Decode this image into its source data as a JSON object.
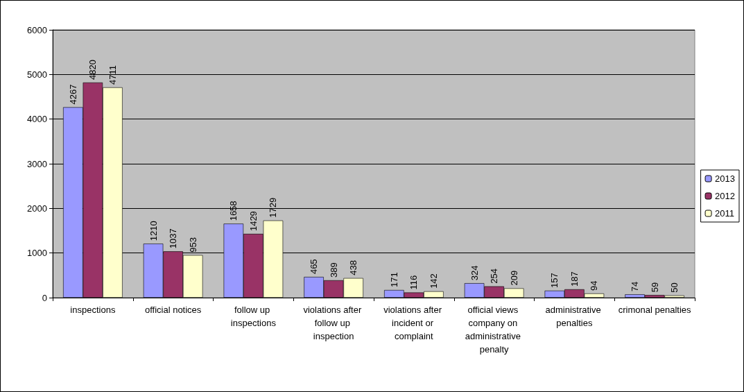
{
  "chart_data": {
    "type": "bar",
    "categories": [
      "inspections",
      "official notices",
      "follow up inspections",
      "violations after follow up inspection",
      "violations after incident or complaint",
      "official views company on administrative penalty",
      "administrative penalties",
      "crimonal penalties"
    ],
    "series": [
      {
        "name": "2013",
        "color": "#9999ff",
        "values": [
          4267,
          1210,
          1658,
          465,
          171,
          324,
          157,
          74
        ]
      },
      {
        "name": "2012",
        "color": "#993366",
        "values": [
          4820,
          1037,
          1429,
          389,
          116,
          254,
          187,
          59
        ]
      },
      {
        "name": "2011",
        "color": "#ffffcc",
        "values": [
          4711,
          953,
          1729,
          438,
          142,
          209,
          94,
          50
        ]
      }
    ],
    "ylim": [
      0,
      6000
    ],
    "yticks": [
      0,
      1000,
      2000,
      3000,
      4000,
      5000,
      6000
    ],
    "grid": "y",
    "legend": "right",
    "data_labels": true
  }
}
